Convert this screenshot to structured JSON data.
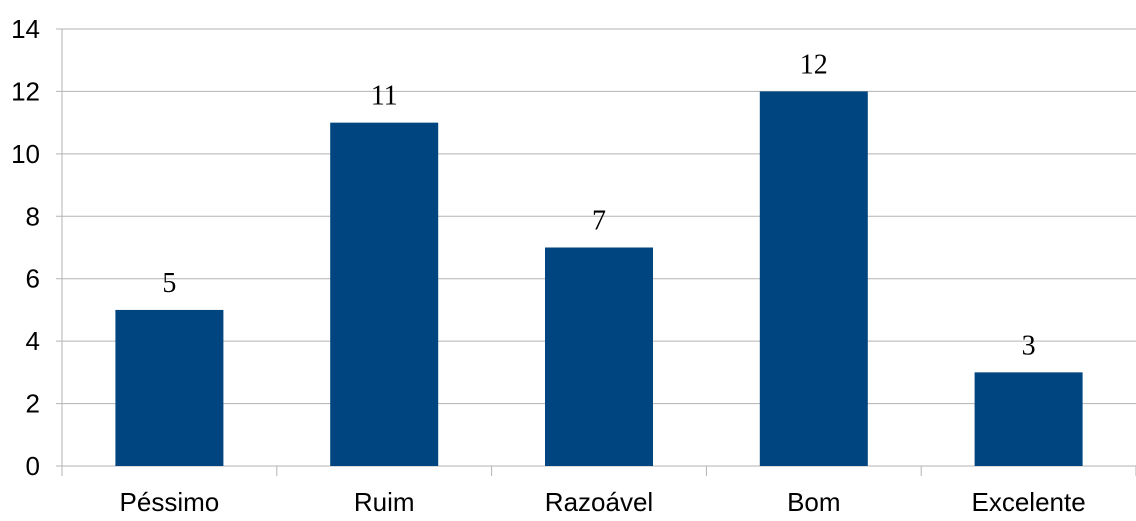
{
  "chart_data": {
    "type": "bar",
    "categories": [
      "Péssimo",
      "Ruim",
      "Razoável",
      "Bom",
      "Excelente"
    ],
    "values": [
      5,
      11,
      7,
      12,
      3
    ],
    "ylim": [
      0,
      14
    ],
    "yticks": [
      0,
      2,
      4,
      6,
      8,
      10,
      12,
      14
    ],
    "grid": true,
    "legend": "none",
    "data_labels": true,
    "bar_color": "#00457f"
  }
}
